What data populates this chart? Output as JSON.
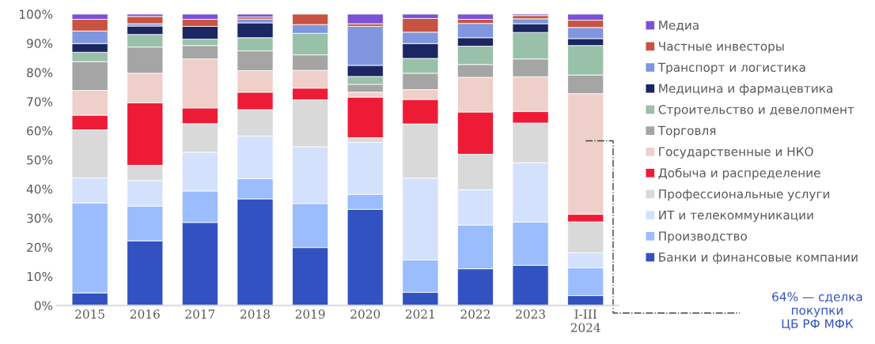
{
  "chart_data": {
    "type": "bar",
    "stacked": true,
    "categories": [
      "2015",
      "2016",
      "2017",
      "2018",
      "2019",
      "2020",
      "2021",
      "2022",
      "2023",
      "I-III\n2024"
    ],
    "series": [
      {
        "name": "Банки и финансовые компании",
        "color": "#3352c1",
        "values": [
          4.3,
          22.2,
          28.5,
          36.6,
          19.9,
          33.0,
          4.5,
          12.6,
          13.8,
          3.4
        ]
      },
      {
        "name": "Производство",
        "color": "#9bbcfd",
        "values": [
          30.9,
          11.9,
          10.8,
          6.9,
          15.1,
          5.1,
          11.1,
          15.0,
          14.8,
          9.5
        ]
      },
      {
        "name": "ИТ и телекоммуникации",
        "color": "#d4e1fd",
        "values": [
          8.6,
          8.8,
          13.3,
          14.7,
          19.5,
          17.9,
          28.1,
          12.1,
          20.4,
          5.2
        ]
      },
      {
        "name": "Профессиональные услуги",
        "color": "#d9d9d9",
        "values": [
          16.5,
          5.2,
          9.8,
          9.0,
          16.1,
          1.6,
          18.6,
          12.2,
          13.6,
          10.6
        ]
      },
      {
        "name": "Добыча и распределение",
        "color": "#ee1b36",
        "values": [
          5.0,
          21.5,
          5.4,
          6.0,
          4.0,
          13.9,
          8.4,
          14.5,
          4.0,
          2.6
        ]
      },
      {
        "name": "Государственные и НКО",
        "color": "#efcfca",
        "values": [
          8.5,
          10.1,
          16.8,
          7.4,
          6.1,
          1.7,
          3.4,
          11.9,
          11.9,
          41.4
        ]
      },
      {
        "name": "Торговля",
        "color": "#a5a5a5",
        "values": [
          9.9,
          9.0,
          4.6,
          6.8,
          5.3,
          2.7,
          5.6,
          4.4,
          6.1,
          6.4
        ]
      },
      {
        "name": "Строительство и девелопмент",
        "color": "#99c0a8",
        "values": [
          3.2,
          4.3,
          2.2,
          4.5,
          7.4,
          2.7,
          5.1,
          6.3,
          9.1,
          10.1
        ]
      },
      {
        "name": "Медицина и фармацевтика",
        "color": "#1b2662",
        "values": [
          3.0,
          2.9,
          4.4,
          5.1,
          0,
          3.8,
          5.1,
          2.9,
          3.0,
          2.4
        ]
      },
      {
        "name": "Транспорт и логистика",
        "color": "#8096de",
        "values": [
          4.3,
          0.8,
          0,
          1.3,
          3.0,
          13.4,
          3.9,
          4.9,
          1.7,
          3.8
        ]
      },
      {
        "name": "Частные инвесторы",
        "color": "#c85340",
        "values": [
          4.0,
          2.5,
          2.4,
          0.7,
          3.6,
          0.9,
          4.7,
          1.4,
          1.1,
          2.5
        ]
      },
      {
        "name": "Медиа",
        "color": "#7b52d6",
        "values": [
          1.8,
          0.8,
          1.8,
          1.0,
          0,
          3.3,
          1.5,
          1.8,
          0.5,
          2.1
        ]
      }
    ],
    "ylim": [
      0,
      100
    ],
    "yticks": [
      {
        "value": 0,
        "label": "0%"
      },
      {
        "value": 10,
        "label": "10%"
      },
      {
        "value": 20,
        "label": "20%"
      },
      {
        "value": 30,
        "label": "30%"
      },
      {
        "value": 40,
        "label": "40%"
      },
      {
        "value": 50,
        "label": "50%"
      },
      {
        "value": 60,
        "label": "60%"
      },
      {
        "value": 70,
        "label": "70%"
      },
      {
        "value": 80,
        "label": "80%"
      },
      {
        "value": 90,
        "label": "90%"
      },
      {
        "value": 100,
        "label": "100%"
      }
    ],
    "grid": false,
    "legend": "right",
    "annotations": [
      "64% — сделка\nпокупки\nЦБ РФ МФК"
    ]
  }
}
